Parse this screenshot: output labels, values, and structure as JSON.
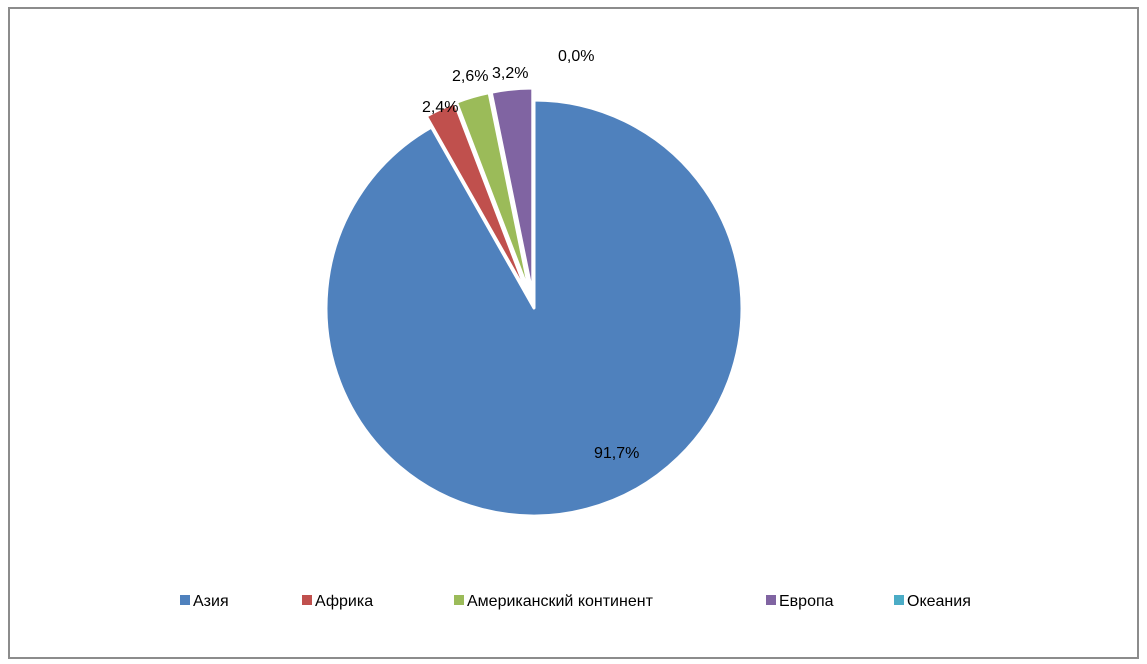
{
  "chart_data": {
    "type": "pie",
    "title": "",
    "categories": [
      "Азия",
      "Африка",
      "Американский континент",
      "Европа",
      "Океания"
    ],
    "values": [
      91.7,
      2.4,
      2.6,
      3.2,
      0.0
    ],
    "data_labels": [
      "91,7%",
      "2,4%",
      "2,6%",
      "3,2%",
      "0,0%"
    ],
    "colors": [
      "#4F81BD",
      "#C0504D",
      "#9BBB59",
      "#8064A2",
      "#4BACC6"
    ],
    "start_angle_deg": 0,
    "direction": "clockwise",
    "exploded": true,
    "legend_position": "bottom"
  }
}
